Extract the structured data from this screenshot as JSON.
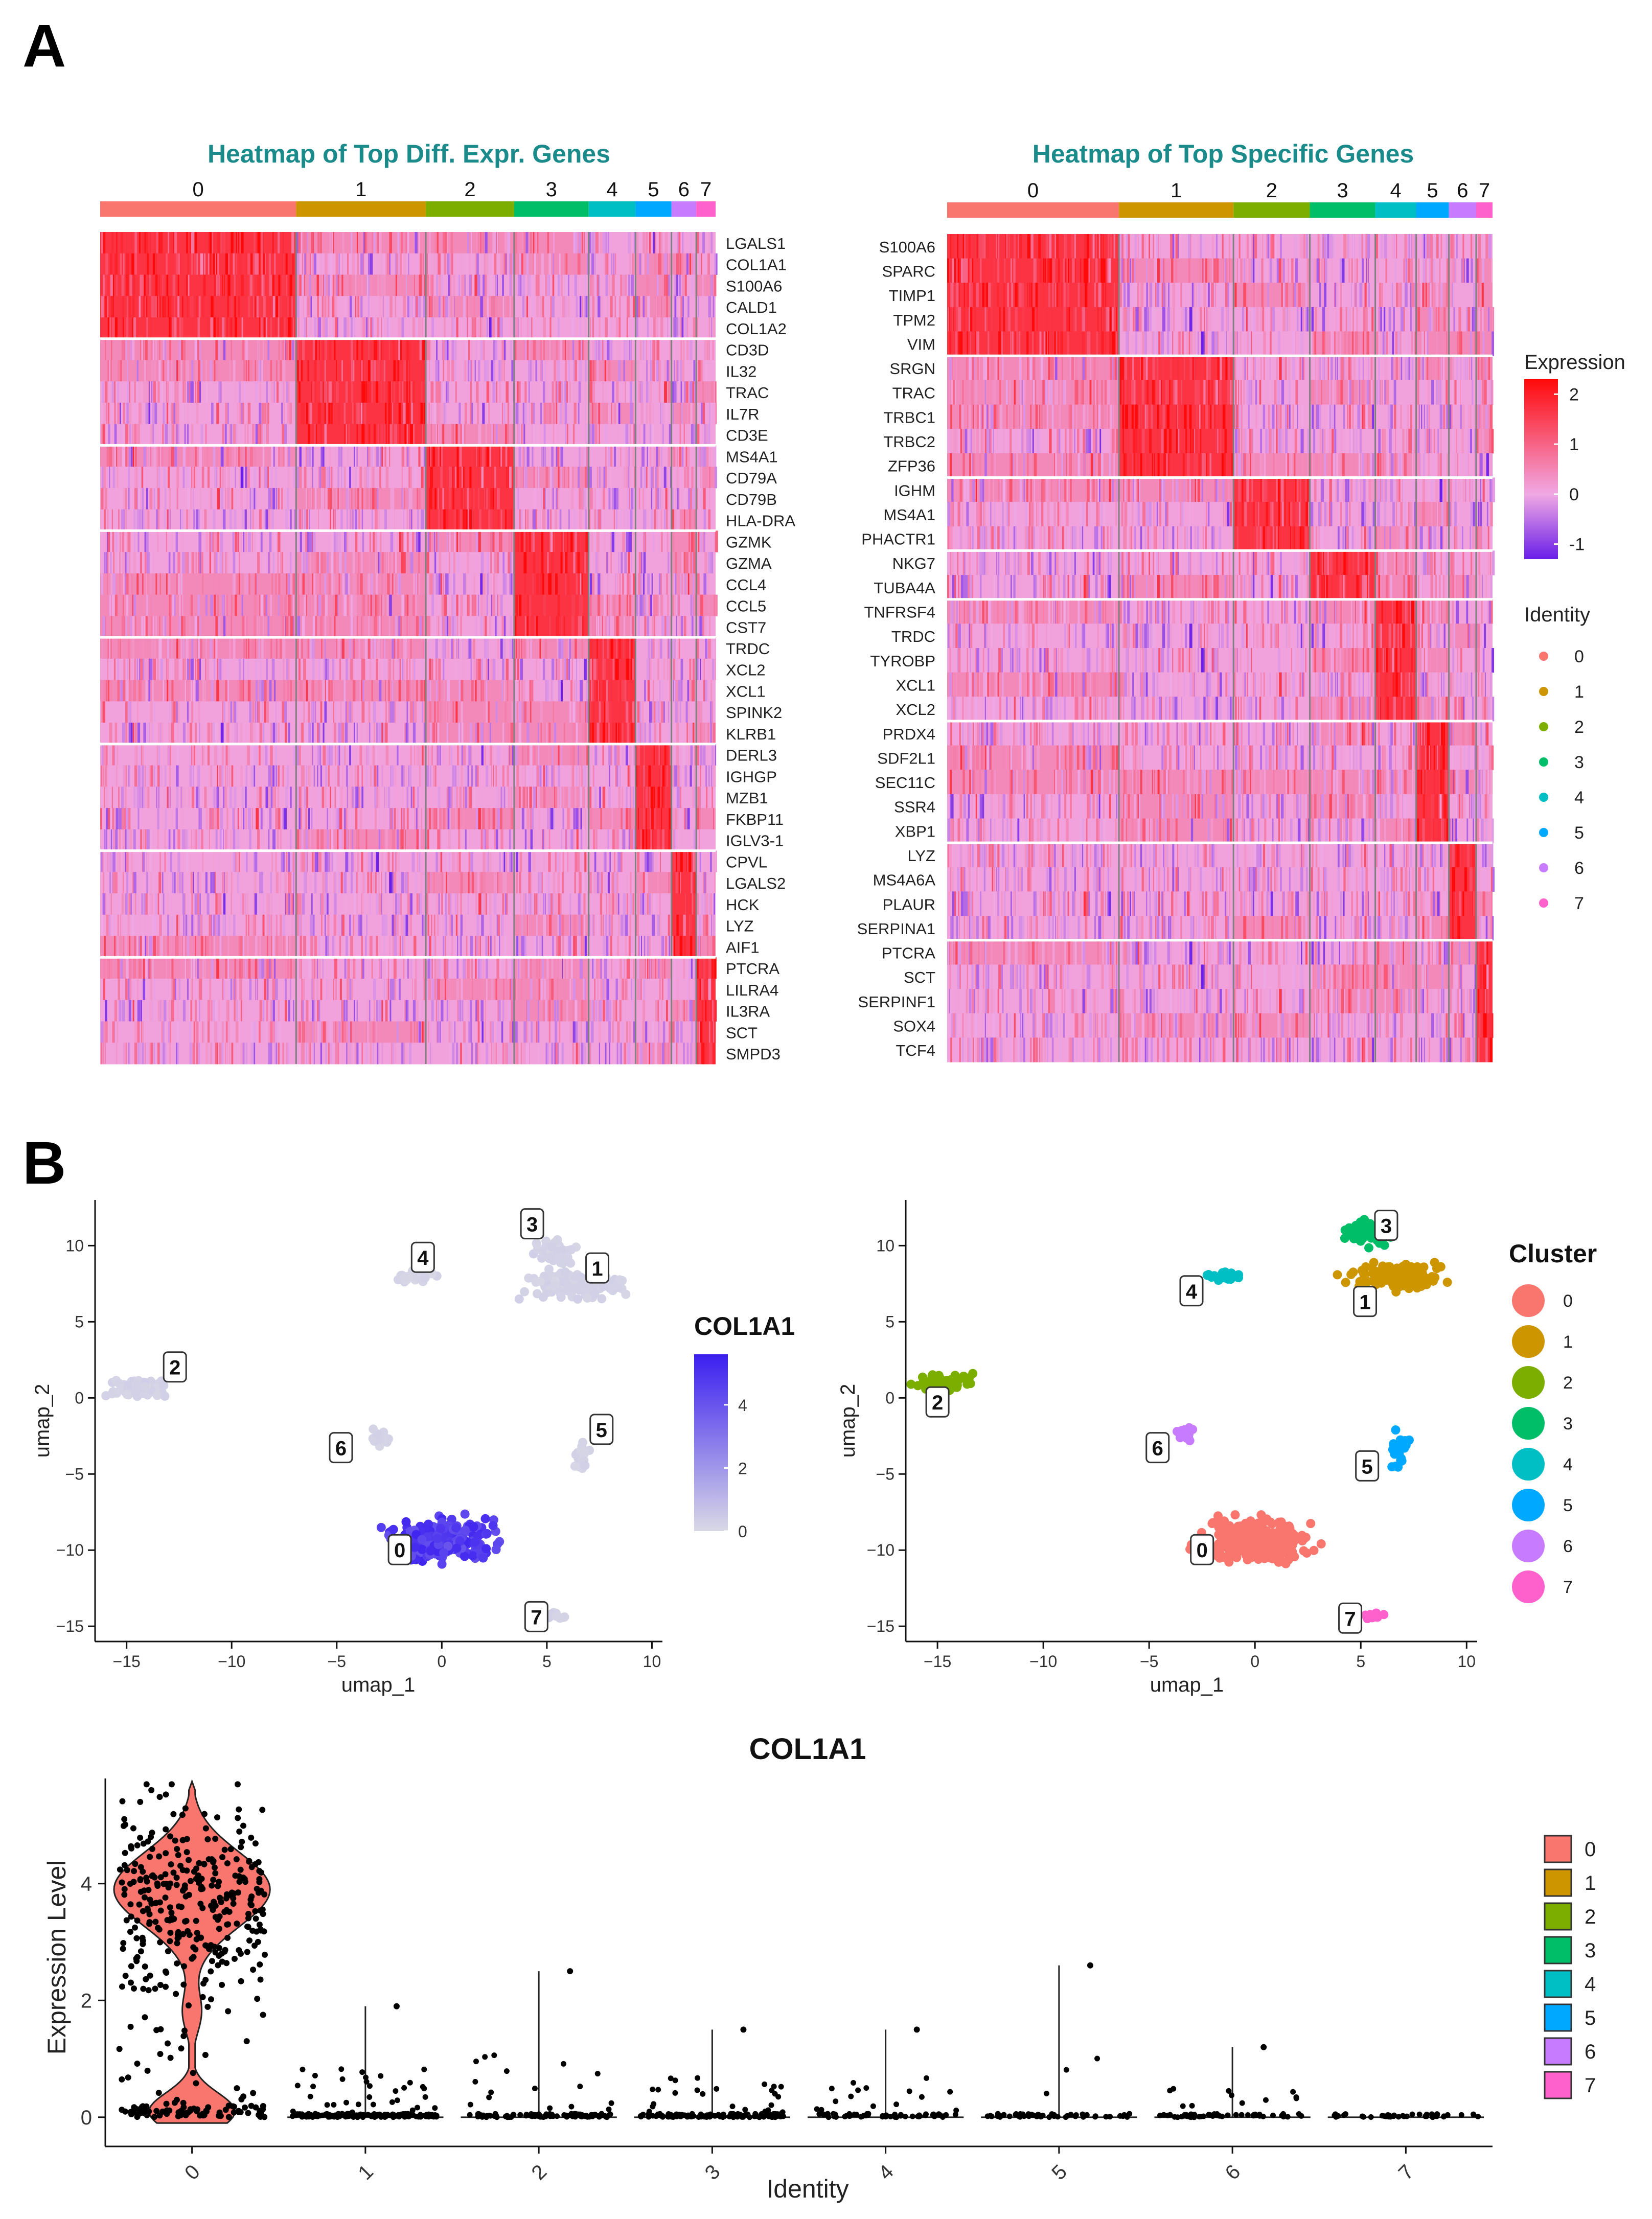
{
  "panels": {
    "a": "A",
    "b": "B"
  },
  "colors": {
    "clusters": [
      "#F8766D",
      "#CD9600",
      "#7CAE00",
      "#00BE67",
      "#00BFC4",
      "#00A9FF",
      "#C77CFF",
      "#FF61CC"
    ],
    "title_teal": "#1a8a8a",
    "heat_low": "#6a1fe8",
    "heat_mid": "#f0a8e4",
    "heat_high": "#ff0a0a",
    "feature_low": "#d9d9e6",
    "feature_high": "#3b1ff0"
  },
  "chart_data": [
    {
      "type": "heatmap",
      "title": "Heatmap of Top Diff. Expr. Genes",
      "groups": [
        "0",
        "1",
        "2",
        "3",
        "4",
        "5",
        "6",
        "7"
      ],
      "group_fractions": [
        0.355,
        0.235,
        0.16,
        0.135,
        0.085,
        0.065,
        0.045,
        0.035
      ],
      "gene_blocks": [
        {
          "cluster": 0,
          "genes": [
            "LGALS1",
            "COL1A1",
            "S100A6",
            "CALD1",
            "COL1A2"
          ]
        },
        {
          "cluster": 1,
          "genes": [
            "CD3D",
            "IL32",
            "TRAC",
            "IL7R",
            "CD3E"
          ]
        },
        {
          "cluster": 2,
          "genes": [
            "MS4A1",
            "CD79A",
            "CD79B",
            "HLA-DRA"
          ]
        },
        {
          "cluster": 3,
          "genes": [
            "GZMK",
            "GZMA",
            "CCL4",
            "CCL5",
            "CST7"
          ]
        },
        {
          "cluster": 4,
          "genes": [
            "TRDC",
            "XCL2",
            "XCL1",
            "SPINK2",
            "KLRB1"
          ]
        },
        {
          "cluster": 5,
          "genes": [
            "DERL3",
            "IGHGP",
            "MZB1",
            "FKBP11",
            "IGLV3-1"
          ]
        },
        {
          "cluster": 6,
          "genes": [
            "CPVL",
            "LGALS2",
            "HCK",
            "LYZ",
            "AIF1"
          ]
        },
        {
          "cluster": 7,
          "genes": [
            "PTCRA",
            "LILRA4",
            "IL3RA",
            "SCT",
            "SMPD3"
          ]
        }
      ]
    },
    {
      "type": "heatmap",
      "title": "Heatmap of Top Specific Genes",
      "groups": [
        "0",
        "1",
        "2",
        "3",
        "4",
        "5",
        "6",
        "7"
      ],
      "group_fractions": [
        0.315,
        0.21,
        0.14,
        0.12,
        0.075,
        0.06,
        0.05,
        0.03
      ],
      "gene_blocks": [
        {
          "cluster": 0,
          "genes": [
            "S100A6",
            "SPARC",
            "TIMP1",
            "TPM2",
            "VIM"
          ]
        },
        {
          "cluster": 1,
          "genes": [
            "SRGN",
            "TRAC",
            "TRBC1",
            "TRBC2",
            "ZFP36"
          ]
        },
        {
          "cluster": 2,
          "genes": [
            "IGHM",
            "MS4A1",
            "PHACTR1"
          ]
        },
        {
          "cluster": 3,
          "genes": [
            "NKG7",
            "TUBA4A"
          ]
        },
        {
          "cluster": 4,
          "genes": [
            "TNFRSF4",
            "TRDC",
            "TYROBP",
            "XCL1",
            "XCL2"
          ]
        },
        {
          "cluster": 5,
          "genes": [
            "PRDX4",
            "SDF2L1",
            "SEC11C",
            "SSR4",
            "XBP1"
          ]
        },
        {
          "cluster": 6,
          "genes": [
            "LYZ",
            "MS4A6A",
            "PLAUR",
            "SERPINA1"
          ]
        },
        {
          "cluster": 7,
          "genes": [
            "PTCRA",
            "SCT",
            "SERPINF1",
            "SOX4",
            "TCF4"
          ]
        }
      ],
      "legend_expression": {
        "title": "Expression",
        "ticks": [
          "2",
          "1",
          "0",
          "-1"
        ],
        "range": [
          -1.3,
          2.3
        ]
      },
      "legend_identity": {
        "title": "Identity",
        "labels": [
          "0",
          "1",
          "2",
          "3",
          "4",
          "5",
          "6",
          "7"
        ]
      }
    },
    {
      "type": "scatter",
      "subtype": "umap_feature",
      "feature": "COL1A1",
      "xlabel": "umap_1",
      "ylabel": "umap_2",
      "xlim": [
        -16.5,
        10.5
      ],
      "ylim": [
        -16,
        13
      ],
      "xticks": [
        -15,
        -10,
        -5,
        0,
        5,
        10
      ],
      "yticks": [
        -15,
        -10,
        -5,
        0,
        5,
        10
      ],
      "xtick_labels": [
        "−15",
        "−10",
        "−5",
        "0",
        "5",
        "10"
      ],
      "ytick_labels": [
        "−15",
        "−10",
        "−5",
        "0",
        "5",
        "10"
      ],
      "colorbar": {
        "title": "COL1A1",
        "ticks": [
          "4",
          "2",
          "0"
        ],
        "range": [
          0,
          5.6
        ]
      },
      "clusters": [
        {
          "label": "0",
          "center": [
            0,
            -9.3
          ],
          "label_pos": [
            -2,
            -10.0
          ],
          "expr": 4
        },
        {
          "label": "1",
          "center": [
            6.5,
            7.5
          ],
          "label_pos": [
            7.4,
            8.5
          ],
          "expr": 0.1
        },
        {
          "label": "2",
          "center": [
            -14.5,
            0.7
          ],
          "label_pos": [
            -12.7,
            2.0
          ],
          "expr": 0.1
        },
        {
          "label": "3",
          "center": [
            5.2,
            9.5
          ],
          "label_pos": [
            4.3,
            11.4
          ],
          "expr": 0.1
        },
        {
          "label": "4",
          "center": [
            -1.5,
            8.0
          ],
          "label_pos": [
            -0.9,
            9.2
          ],
          "expr": 0.05
        },
        {
          "label": "5",
          "center": [
            6.6,
            -4.0
          ],
          "label_pos": [
            7.6,
            -2.1
          ],
          "expr": 0.1
        },
        {
          "label": "6",
          "center": [
            -3.0,
            -2.5
          ],
          "label_pos": [
            -4.8,
            -3.3
          ],
          "expr": 0.1
        },
        {
          "label": "7",
          "center": [
            5.5,
            -14.3
          ],
          "label_pos": [
            4.5,
            -14.4
          ],
          "expr": 0.1
        }
      ]
    },
    {
      "type": "scatter",
      "subtype": "umap_clusters",
      "xlabel": "umap_1",
      "ylabel": "umap_2",
      "xlim": [
        -16.5,
        10.5
      ],
      "ylim": [
        -16,
        13
      ],
      "xticks": [
        -15,
        -10,
        -5,
        0,
        5,
        10
      ],
      "yticks": [
        -15,
        -10,
        -5,
        0,
        5,
        10
      ],
      "xtick_labels": [
        "−15",
        "−10",
        "−5",
        "0",
        "5",
        "10"
      ],
      "ytick_labels": [
        "−15",
        "−10",
        "−5",
        "0",
        "5",
        "10"
      ],
      "legend": {
        "title": "Cluster",
        "labels": [
          "0",
          "1",
          "2",
          "3",
          "4",
          "5",
          "6",
          "7"
        ]
      },
      "clusters": [
        {
          "label": "0",
          "center": [
            0,
            -9.3
          ],
          "label_pos": [
            -2.5,
            -10.0
          ]
        },
        {
          "label": "1",
          "center": [
            6.8,
            8.0
          ],
          "label_pos": [
            5.2,
            6.3
          ]
        },
        {
          "label": "2",
          "center": [
            -14.7,
            1.0
          ],
          "label_pos": [
            -15,
            -0.3
          ]
        },
        {
          "label": "3",
          "center": [
            5.3,
            10.8
          ],
          "label_pos": [
            6.2,
            11.3
          ]
        },
        {
          "label": "4",
          "center": [
            -1.5,
            8.0
          ],
          "label_pos": [
            -3.0,
            7.0
          ]
        },
        {
          "label": "5",
          "center": [
            6.8,
            -3.5
          ],
          "label_pos": [
            5.3,
            -4.5
          ]
        },
        {
          "label": "6",
          "center": [
            -3.3,
            -2.3
          ],
          "label_pos": [
            -4.6,
            -3.3
          ]
        },
        {
          "label": "7",
          "center": [
            5.7,
            -14.3
          ],
          "label_pos": [
            4.5,
            -14.5
          ]
        }
      ]
    },
    {
      "type": "violin",
      "title": "COL1A1",
      "xlabel": "Identity",
      "ylabel": "Expression Level",
      "categories": [
        "0",
        "1",
        "2",
        "3",
        "4",
        "5",
        "6",
        "7"
      ],
      "ylim": [
        -0.5,
        5.8
      ],
      "yticks": [
        0,
        2,
        4
      ],
      "ytick_labels": [
        "0",
        "2",
        "4"
      ],
      "max_values": [
        5.7,
        1.9,
        2.5,
        1.5,
        1.5,
        2.6,
        1.2,
        0.05
      ],
      "legend_labels": [
        "0",
        "1",
        "2",
        "3",
        "4",
        "5",
        "6",
        "7"
      ]
    }
  ]
}
